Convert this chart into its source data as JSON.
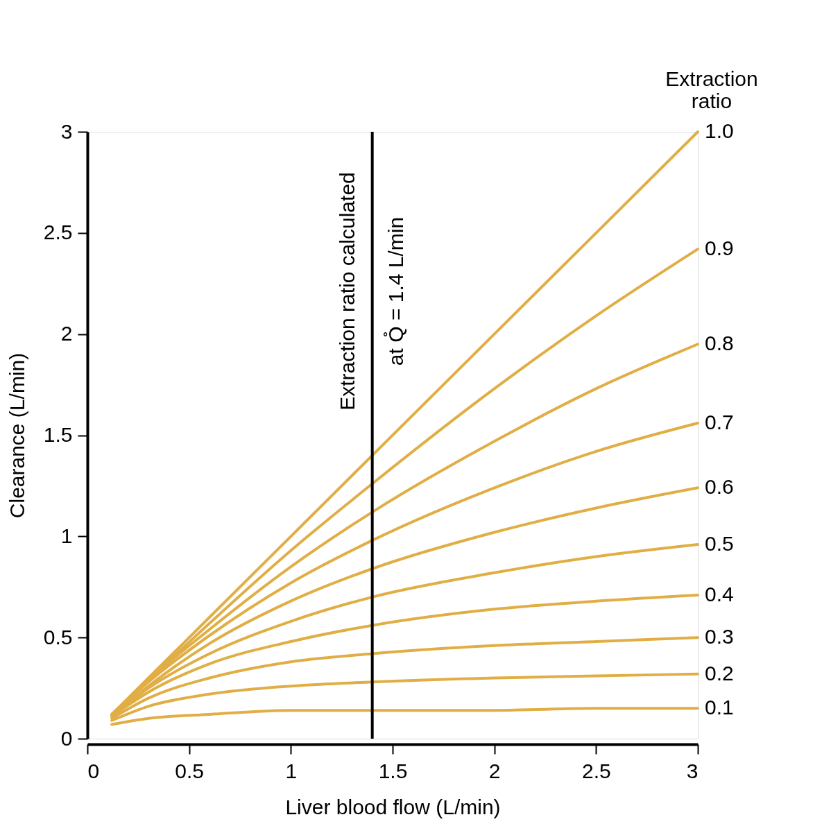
{
  "chart_data": {
    "type": "line",
    "xlabel": "Liver blood flow (L/min)",
    "ylabel": "Clearance (L/min)",
    "legend_title": "Extraction ratio",
    "x": [
      0.12,
      0.3,
      0.6,
      1,
      1.4,
      2,
      2.5,
      3
    ],
    "series": [
      {
        "name": "1.0",
        "color": "#e0ae45",
        "values": [
          0.12,
          0.3,
          0.6,
          1,
          1.4,
          2,
          2.5,
          3
        ]
      },
      {
        "name": "0.9",
        "color": "#e0ae45",
        "values": [
          0.12,
          0.29,
          0.57,
          0.93,
          1.26,
          1.73,
          2.09,
          2.42
        ]
      },
      {
        "name": "0.8",
        "color": "#e0ae45",
        "values": [
          0.12,
          0.29,
          0.54,
          0.85,
          1.12,
          1.47,
          1.73,
          1.95
        ]
      },
      {
        "name": "0.7",
        "color": "#e0ae45",
        "values": [
          0.12,
          0.28,
          0.51,
          0.77,
          0.98,
          1.24,
          1.42,
          1.56
        ]
      },
      {
        "name": "0.6",
        "color": "#e0ae45",
        "values": [
          0.11,
          0.26,
          0.47,
          0.68,
          0.84,
          1.02,
          1.14,
          1.24
        ]
      },
      {
        "name": "0.5",
        "color": "#e0ae45",
        "values": [
          0.11,
          0.25,
          0.42,
          0.58,
          0.7,
          0.82,
          0.9,
          0.96
        ]
      },
      {
        "name": "0.4",
        "color": "#e0ae45",
        "values": [
          0.11,
          0.23,
          0.37,
          0.48,
          0.56,
          0.64,
          0.68,
          0.71
        ]
      },
      {
        "name": "0.3",
        "color": "#e0ae45",
        "values": [
          0.1,
          0.2,
          0.3,
          0.38,
          0.42,
          0.46,
          0.48,
          0.5
        ]
      },
      {
        "name": "0.2",
        "color": "#e0ae45",
        "values": [
          0.09,
          0.16,
          0.22,
          0.26,
          0.28,
          0.3,
          0.31,
          0.32
        ]
      },
      {
        "name": "0.1",
        "color": "#e0ae45",
        "values": [
          0.07,
          0.1,
          0.12,
          0.14,
          0.14,
          0.14,
          0.15,
          0.15
        ]
      }
    ],
    "xlim": [
      0,
      3
    ],
    "ylim": [
      0,
      3
    ],
    "xticks": [
      0,
      0.5,
      1,
      1.5,
      2,
      2.5,
      3
    ],
    "yticks": [
      0,
      0.5,
      1,
      1.5,
      2,
      2.5,
      3
    ],
    "ref_lines": [
      {
        "axis": "x",
        "value": 1.4,
        "label": "Extraction ratio calculated\nat Q̊ = 1.4 L/min",
        "color": "#000000"
      }
    ],
    "grid": false,
    "legend": false,
    "marker": "none",
    "line_style": "solid"
  }
}
